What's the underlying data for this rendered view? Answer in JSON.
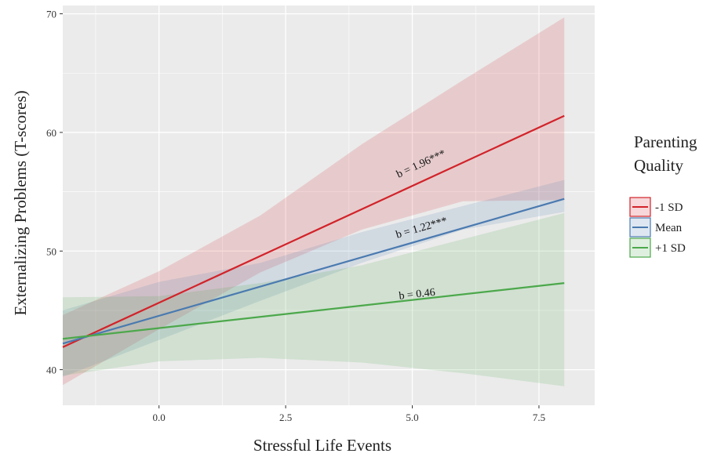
{
  "chart_data": {
    "type": "line",
    "xlabel": "Stressful Life Events",
    "ylabel": "Externalizing Problems (T-scores)",
    "xlim": [
      -1.9,
      8.6
    ],
    "ylim": [
      37.0,
      70.7
    ],
    "x_ticks": [
      "0.0",
      "2.5",
      "5.0",
      "7.5"
    ],
    "y_ticks": [
      "40",
      "50",
      "60",
      "70"
    ],
    "x_tick_values": [
      0,
      2.5,
      5,
      7.5
    ],
    "y_tick_values": [
      40,
      50,
      60,
      70
    ],
    "grid": true,
    "background": "#ebebeb",
    "legend": {
      "title_line1": "Parenting",
      "title_line2": "Quality",
      "position": "right",
      "entries": [
        "-1 SD",
        "Mean",
        "+1 SD"
      ]
    },
    "series": [
      {
        "name": "-1 SD",
        "color": "#d2232a",
        "x": [
          -1.9,
          8.0
        ],
        "y": [
          41.9,
          61.4
        ],
        "ci_x": [
          -1.9,
          0.0,
          2.0,
          4.0,
          6.0,
          8.0
        ],
        "ci_lower": [
          38.7,
          43.4,
          48.2,
          51.8,
          54.2,
          54.3
        ],
        "ci_upper": [
          44.6,
          48.3,
          53.0,
          59.0,
          64.4,
          69.7
        ],
        "annotation": "b = 1.96***",
        "annotation_x": 5.2,
        "annotation_y": 57.1
      },
      {
        "name": "Mean",
        "color": "#4a7ab0",
        "x": [
          -1.9,
          8.0
        ],
        "y": [
          42.2,
          54.4
        ],
        "ci_x": [
          -1.9,
          0.0,
          2.0,
          4.0,
          6.0,
          8.0
        ],
        "ci_lower": [
          39.4,
          42.5,
          45.8,
          49.0,
          51.8,
          53.3
        ],
        "ci_upper": [
          45.0,
          47.4,
          49.0,
          51.6,
          53.8,
          56.0
        ],
        "annotation": "b = 1.22***",
        "annotation_x": 5.2,
        "annotation_y": 51.7
      },
      {
        "name": "+1 SD",
        "color": "#4ca84b",
        "x": [
          -1.9,
          8.0
        ],
        "y": [
          42.6,
          47.3
        ],
        "ci_x": [
          -1.9,
          0.0,
          2.0,
          4.0,
          6.0,
          8.0
        ],
        "ci_lower": [
          39.5,
          40.7,
          41.0,
          40.6,
          39.7,
          38.6
        ],
        "ci_upper": [
          46.1,
          46.2,
          47.3,
          48.8,
          51.0,
          53.2
        ],
        "annotation": "b = 0.46",
        "annotation_x": 5.1,
        "annotation_y": 46.1
      }
    ]
  }
}
